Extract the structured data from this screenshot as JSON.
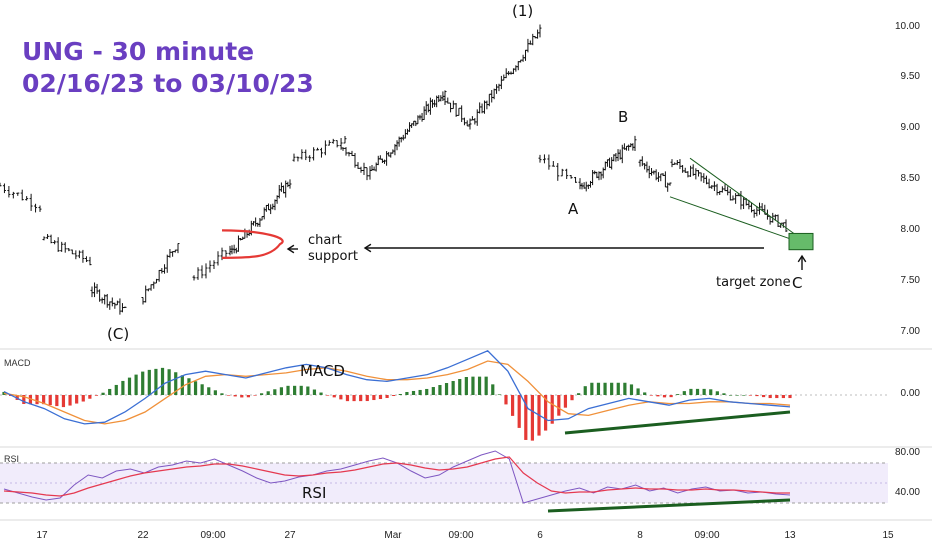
{
  "title": {
    "line1": "UNG - 30 minute",
    "line2": "02/16/23 to 03/10/23"
  },
  "colors": {
    "title": "#6a3fc1",
    "support": "#e53935",
    "trend": "#1b5e20",
    "target_fill": "#66bb6a",
    "macd_line": "#3b6fd4",
    "signal_line": "#f0913a",
    "hist_pos": "#2e7d32",
    "hist_neg": "#e53935",
    "rsi_line": "#7e57c2",
    "rsi_ma": "#e53950",
    "rsi_band": "#f1ecfb"
  },
  "labels": {
    "wave_1": "(1)",
    "wave_c_low": "(C)",
    "wave_a": "A",
    "wave_b": "B",
    "wave_c": "C",
    "chart_support": [
      "chart",
      "support"
    ],
    "target_zone": "target zone",
    "macd_big": "MACD",
    "rsi_big": "RSI",
    "macd_pane": "MACD",
    "rsi_pane": "RSI"
  },
  "chart_data": [
    {
      "type": "candlestick",
      "title": "UNG - 30 minute 02/16/23 to 03/10/23",
      "ylim": [
        6.8,
        10.3
      ],
      "y_ticks": [
        "10.00",
        "9.50",
        "9.00",
        "8.50",
        "8.00",
        "7.50",
        "7.00"
      ],
      "x_ticks": [
        "17",
        "22",
        "09:00",
        "27",
        "Mar",
        "09:00",
        "6",
        "8",
        "09:00",
        "13",
        "15"
      ],
      "segments": [
        {
          "start_price": 8.45,
          "end_price": 8.25,
          "bars": 10
        },
        {
          "start_price": 7.92,
          "end_price": 7.7,
          "bars": 14
        },
        {
          "start_price": 7.42,
          "end_price": 7.22,
          "bars": 14
        },
        {
          "start_price": 7.35,
          "end_price": 7.9,
          "bars": 14
        },
        {
          "start_price": 7.55,
          "end_price": 7.82,
          "bars": 10
        },
        {
          "start_price": 7.8,
          "end_price": 8.5,
          "bars": 28
        },
        {
          "start_price": 8.7,
          "end_price": 8.9,
          "bars": 14
        },
        {
          "start_price": 8.82,
          "end_price": 8.55,
          "bars": 10
        },
        {
          "start_price": 8.6,
          "end_price": 9.4,
          "bars": 36
        },
        {
          "start_price": 9.3,
          "end_price": 9.05,
          "bars": 10
        },
        {
          "start_price": 9.05,
          "end_price": 9.97,
          "bars": 30
        },
        {
          "start_price": 8.72,
          "end_price": 8.42,
          "bars": 10
        },
        {
          "start_price": 8.45,
          "end_price": 8.88,
          "bars": 26
        },
        {
          "start_price": 8.68,
          "end_price": 8.45,
          "bars": 14
        },
        {
          "start_price": 8.68,
          "end_price": 8.05,
          "bars": 44
        }
      ],
      "support_level": 7.85,
      "target_zone": [
        7.85,
        7.98
      ],
      "annotations": [
        "(1)",
        "(C)",
        "A",
        "B",
        "C",
        "chart support",
        "target zone"
      ]
    },
    {
      "type": "macd",
      "title": "MACD",
      "y_ticks": [
        "0.00"
      ],
      "macd_line": [
        0.02,
        -0.04,
        -0.08,
        -0.14,
        -0.17,
        -0.16,
        -0.1,
        -0.02,
        0.07,
        0.12,
        0.14,
        0.12,
        0.1,
        0.13,
        0.16,
        0.18,
        0.16,
        0.12,
        0.09,
        0.08,
        0.1,
        0.12,
        0.16,
        0.21,
        0.26,
        0.14,
        -0.08,
        -0.15,
        -0.14,
        -0.08,
        -0.05,
        -0.02,
        -0.04,
        -0.06,
        -0.03,
        -0.02,
        -0.04,
        -0.05,
        -0.06,
        -0.07
      ],
      "signal_line": [
        0.01,
        -0.01,
        -0.05,
        -0.1,
        -0.15,
        -0.17,
        -0.15,
        -0.1,
        -0.02,
        0.06,
        0.11,
        0.12,
        0.11,
        0.12,
        0.13,
        0.15,
        0.16,
        0.14,
        0.11,
        0.09,
        0.09,
        0.1,
        0.12,
        0.15,
        0.2,
        0.18,
        0.08,
        -0.04,
        -0.11,
        -0.12,
        -0.09,
        -0.06,
        -0.04,
        -0.05,
        -0.05,
        -0.04,
        -0.04,
        -0.05,
        -0.05,
        -0.06
      ]
    },
    {
      "type": "rsi",
      "title": "RSI",
      "y_ticks": [
        "80.00",
        "40.00"
      ],
      "bands": [
        30,
        70
      ],
      "values": [
        44,
        40,
        36,
        33,
        35,
        48,
        58,
        55,
        62,
        64,
        60,
        66,
        68,
        72,
        70,
        74,
        68,
        62,
        55,
        50,
        52,
        56,
        58,
        62,
        64,
        68,
        72,
        75,
        70,
        62,
        55,
        58,
        66,
        72,
        78,
        82,
        74,
        30,
        34,
        38,
        42,
        45,
        40,
        46,
        44,
        48,
        42,
        45,
        40,
        44,
        46,
        42,
        43,
        40,
        41,
        39,
        38
      ],
      "ma": [
        42,
        41,
        40,
        38,
        37,
        40,
        45,
        49,
        53,
        57,
        60,
        62,
        64,
        66,
        67,
        69,
        69,
        67,
        64,
        61,
        58,
        57,
        58,
        60,
        61,
        63,
        66,
        69,
        70,
        68,
        65,
        63,
        64,
        66,
        70,
        74,
        76,
        60,
        50,
        42,
        40,
        41,
        41,
        43,
        44,
        45,
        44,
        44,
        43,
        43,
        44,
        43,
        43,
        42,
        41,
        40,
        40
      ]
    }
  ]
}
